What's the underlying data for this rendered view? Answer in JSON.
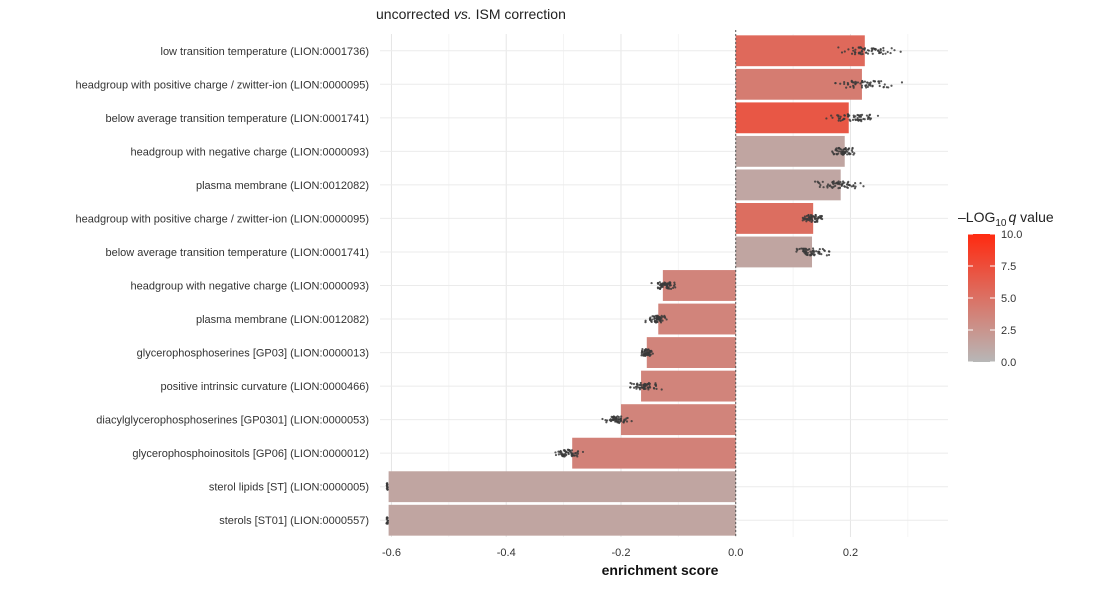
{
  "chart_data": {
    "type": "bar",
    "orientation": "horizontal",
    "title_parts": [
      "uncorrected ",
      "vs.",
      " ISM correction"
    ],
    "xlabel": "enrichment score",
    "ylabel": "",
    "xlim": [
      -0.62,
      0.37
    ],
    "xticks": [
      -0.6,
      -0.4,
      -0.2,
      0.0,
      0.2
    ],
    "xtick_labels": [
      "-0.6",
      "-0.4",
      "-0.2",
      "0.0",
      "0.2"
    ],
    "grid": true,
    "reference_line": 0.0,
    "categories": [
      "low transition temperature (LION:0001736)",
      "headgroup with positive charge / zwitter-ion (LION:0000095)",
      "below average transition temperature (LION:0001741)",
      "headgroup with negative charge (LION:0000093)",
      "plasma membrane (LION:0012082)",
      "headgroup with positive charge / zwitter-ion (LION:0000095)",
      "below average transition temperature (LION:0001741)",
      "headgroup with negative charge (LION:0000093)",
      "plasma membrane (LION:0012082)",
      "glycerophosphoserines [GP03] (LION:0000013)",
      "positive intrinsic curvature (LION:0000466)",
      "diacylglycerophosphoserines [GP0301] (LION:0000053)",
      "glycerophosphoinositols [GP06] (LION:0000012)",
      "sterol lipids [ST] (LION:0000005)",
      "sterols [ST01] (LION:0000557)"
    ],
    "values": [
      0.225,
      0.22,
      0.197,
      0.19,
      0.183,
      0.135,
      0.133,
      -0.127,
      -0.135,
      -0.155,
      -0.165,
      -0.2,
      -0.285,
      -0.605,
      -0.605
    ],
    "neg_log10_q": [
      5.5,
      4.2,
      6.8,
      1.3,
      1.2,
      5.2,
      1.3,
      3.6,
      3.6,
      3.6,
      3.6,
      3.6,
      3.8,
      1.3,
      1.3
    ],
    "jitter_spread": [
      [
        0.165,
        0.31
      ],
      [
        0.155,
        0.305
      ],
      [
        0.145,
        0.265
      ],
      [
        0.16,
        0.215
      ],
      [
        0.13,
        0.235
      ],
      [
        0.11,
        0.16
      ],
      [
        0.085,
        0.18
      ],
      [
        -0.15,
        -0.095
      ],
      [
        -0.16,
        -0.115
      ],
      [
        -0.17,
        -0.14
      ],
      [
        -0.195,
        -0.125
      ],
      [
        -0.235,
        -0.175
      ],
      [
        -0.325,
        -0.26
      ],
      [
        -0.61,
        -0.605
      ],
      [
        -0.61,
        -0.605
      ]
    ],
    "legend": {
      "title_prefix": "–LOG",
      "title_sub": "10",
      "title_q": "q",
      "title_suffix": " value",
      "position": "right",
      "scale_min": 0,
      "scale_max": 10,
      "ticks": [
        0.0,
        2.5,
        5.0,
        7.5,
        10.0
      ],
      "tick_labels": [
        "0.0",
        "2.5",
        "5.0",
        "7.5",
        "10.0"
      ],
      "low_color": "#b7b7b7",
      "high_color": "#ff2a10"
    }
  }
}
